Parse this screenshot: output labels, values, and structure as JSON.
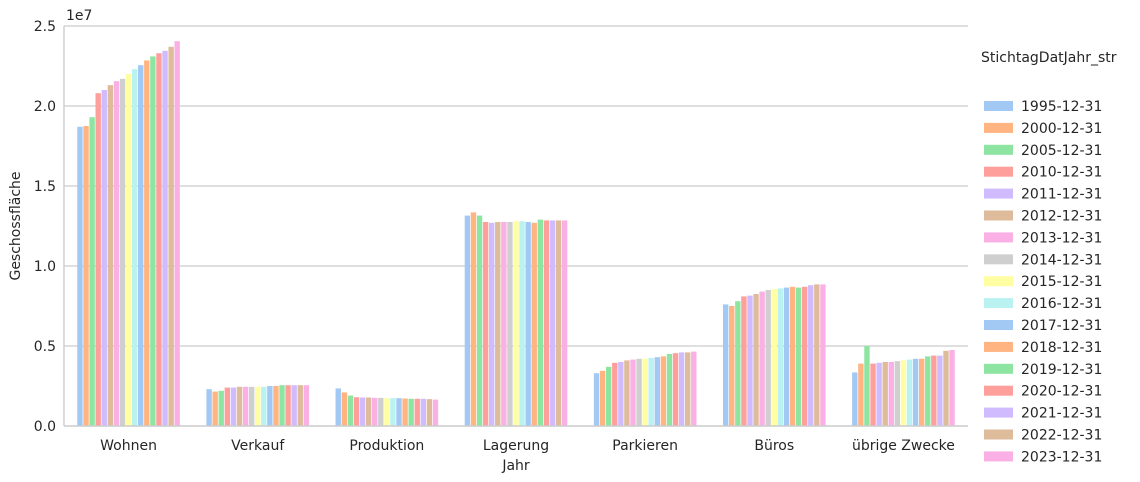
{
  "chart_data": {
    "type": "bar",
    "xlabel": "Jahr",
    "ylabel": "Geschossfläche",
    "scale_label": "1e7",
    "ylim": [
      0,
      25000000
    ],
    "yticks": [
      0,
      5000000,
      10000000,
      15000000,
      20000000,
      25000000
    ],
    "ytick_labels": [
      "0.0",
      "0.5",
      "1.0",
      "1.5",
      "2.0",
      "2.5"
    ],
    "grid": "horizontal",
    "legend_title": "StichtagDatJahr_str",
    "legend_position": "right",
    "categories": [
      "Wohnen",
      "Verkauf",
      "Produktion",
      "Lagerung",
      "Parkieren",
      "Büros",
      "übrige Zwecke"
    ],
    "series": [
      {
        "name": "1995-12-31",
        "color": "#a1c9f4",
        "values": [
          18700000,
          2300000,
          2350000,
          13150000,
          3300000,
          7600000,
          3350000
        ]
      },
      {
        "name": "2000-12-31",
        "color": "#ffb482",
        "values": [
          18750000,
          2150000,
          2100000,
          13350000,
          3450000,
          7500000,
          3900000
        ]
      },
      {
        "name": "2005-12-31",
        "color": "#8de5a1",
        "values": [
          19300000,
          2200000,
          1900000,
          13150000,
          3700000,
          7800000,
          5000000
        ]
      },
      {
        "name": "2010-12-31",
        "color": "#ff9f9b",
        "values": [
          20800000,
          2400000,
          1800000,
          12750000,
          3950000,
          8100000,
          3900000
        ]
      },
      {
        "name": "2011-12-31",
        "color": "#d0bbff",
        "values": [
          21000000,
          2400000,
          1780000,
          12700000,
          4000000,
          8150000,
          3950000
        ]
      },
      {
        "name": "2012-12-31",
        "color": "#debb9b",
        "values": [
          21300000,
          2450000,
          1780000,
          12750000,
          4100000,
          8250000,
          4000000
        ]
      },
      {
        "name": "2013-12-31",
        "color": "#fab0e4",
        "values": [
          21550000,
          2450000,
          1760000,
          12750000,
          4150000,
          8400000,
          4000000
        ]
      },
      {
        "name": "2014-12-31",
        "color": "#cfcfcf",
        "values": [
          21700000,
          2450000,
          1760000,
          12750000,
          4200000,
          8500000,
          4050000
        ]
      },
      {
        "name": "2015-12-31",
        "color": "#fffea3",
        "values": [
          22000000,
          2450000,
          1740000,
          12800000,
          4200000,
          8550000,
          4100000
        ]
      },
      {
        "name": "2016-12-31",
        "color": "#b9f2f0",
        "values": [
          22300000,
          2450000,
          1740000,
          12800000,
          4250000,
          8600000,
          4150000
        ]
      },
      {
        "name": "2017-12-31",
        "color": "#a1c9f4",
        "values": [
          22550000,
          2500000,
          1740000,
          12750000,
          4300000,
          8650000,
          4200000
        ]
      },
      {
        "name": "2018-12-31",
        "color": "#ffb482",
        "values": [
          22850000,
          2500000,
          1720000,
          12700000,
          4350000,
          8700000,
          4200000
        ]
      },
      {
        "name": "2019-12-31",
        "color": "#8de5a1",
        "values": [
          23100000,
          2550000,
          1700000,
          12900000,
          4500000,
          8650000,
          4350000
        ]
      },
      {
        "name": "2020-12-31",
        "color": "#ff9f9b",
        "values": [
          23300000,
          2550000,
          1700000,
          12850000,
          4550000,
          8700000,
          4400000
        ]
      },
      {
        "name": "2021-12-31",
        "color": "#d0bbff",
        "values": [
          23450000,
          2550000,
          1700000,
          12850000,
          4600000,
          8800000,
          4400000
        ]
      },
      {
        "name": "2022-12-31",
        "color": "#debb9b",
        "values": [
          23700000,
          2550000,
          1680000,
          12850000,
          4600000,
          8850000,
          4700000
        ]
      },
      {
        "name": "2023-12-31",
        "color": "#fab0e4",
        "values": [
          24050000,
          2550000,
          1650000,
          12850000,
          4650000,
          8850000,
          4750000
        ]
      }
    ]
  }
}
